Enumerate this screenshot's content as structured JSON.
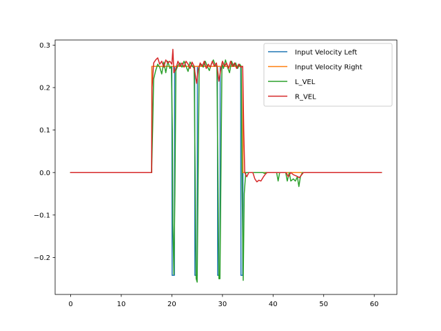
{
  "chart_data": {
    "type": "line",
    "title": "",
    "xlabel": "",
    "ylabel": "",
    "xlim": [
      -3.07,
      64.47
    ],
    "ylim": [
      -0.287,
      0.312
    ],
    "xticks": [
      0,
      10,
      20,
      30,
      40,
      50,
      60
    ],
    "xtick_labels": [
      "0",
      "10",
      "20",
      "30",
      "40",
      "50",
      "60"
    ],
    "yticks": [
      -0.2,
      -0.1,
      0.0,
      0.1,
      0.2,
      0.3
    ],
    "ytick_labels": [
      "−0.2",
      "−0.1",
      "0.0",
      "0.1",
      "0.2",
      "0.3"
    ],
    "grid": false,
    "legend_position": "top-right",
    "series": [
      {
        "name": "Input Velocity Left",
        "color": "#1f77b4",
        "points": [
          [
            0,
            0
          ],
          [
            16.0,
            0
          ],
          [
            16.05,
            0.25
          ],
          [
            20.0,
            0.25
          ],
          [
            20.05,
            -0.242
          ],
          [
            20.5,
            -0.242
          ],
          [
            20.55,
            0.25
          ],
          [
            24.5,
            0.25
          ],
          [
            24.55,
            -0.242
          ],
          [
            25.0,
            -0.242
          ],
          [
            25.05,
            0.25
          ],
          [
            29.0,
            0.25
          ],
          [
            29.05,
            -0.242
          ],
          [
            29.5,
            -0.242
          ],
          [
            29.55,
            0.25
          ],
          [
            33.6,
            0.25
          ],
          [
            33.65,
            -0.242
          ],
          [
            34.0,
            -0.242
          ],
          [
            34.05,
            0
          ],
          [
            61.4,
            0
          ]
        ]
      },
      {
        "name": "Input Velocity Right",
        "color": "#ff7f0e",
        "points": [
          [
            0,
            0
          ],
          [
            16.0,
            0
          ],
          [
            16.05,
            0.25
          ],
          [
            34.0,
            0.25
          ],
          [
            34.05,
            0
          ],
          [
            61.4,
            0
          ]
        ]
      },
      {
        "name": "L_VEL",
        "color": "#2ca02c",
        "points": [
          [
            0,
            0
          ],
          [
            16.0,
            0
          ],
          [
            16.2,
            0.1
          ],
          [
            16.4,
            0.22
          ],
          [
            16.8,
            0.24
          ],
          [
            17.2,
            0.255
          ],
          [
            17.6,
            0.248
          ],
          [
            18.0,
            0.232
          ],
          [
            18.4,
            0.26
          ],
          [
            18.8,
            0.235
          ],
          [
            19.2,
            0.262
          ],
          [
            19.6,
            0.245
          ],
          [
            19.9,
            0.25
          ],
          [
            20.1,
            0.1
          ],
          [
            20.2,
            -0.12
          ],
          [
            20.4,
            -0.24
          ],
          [
            20.6,
            -0.05
          ],
          [
            20.8,
            0.24
          ],
          [
            21.2,
            0.252
          ],
          [
            21.6,
            0.258
          ],
          [
            22.0,
            0.248
          ],
          [
            22.4,
            0.262
          ],
          [
            22.8,
            0.25
          ],
          [
            23.2,
            0.238
          ],
          [
            23.6,
            0.26
          ],
          [
            24.0,
            0.252
          ],
          [
            24.4,
            0.245
          ],
          [
            24.6,
            0.0
          ],
          [
            24.8,
            -0.25
          ],
          [
            25.0,
            -0.258
          ],
          [
            25.2,
            0.0
          ],
          [
            25.4,
            0.25
          ],
          [
            25.8,
            0.255
          ],
          [
            26.2,
            0.248
          ],
          [
            26.6,
            0.262
          ],
          [
            27.0,
            0.25
          ],
          [
            27.4,
            0.24
          ],
          [
            27.8,
            0.255
          ],
          [
            28.2,
            0.265
          ],
          [
            28.6,
            0.252
          ],
          [
            28.9,
            0.25
          ],
          [
            29.1,
            0.0
          ],
          [
            29.3,
            -0.25
          ],
          [
            29.5,
            -0.25
          ],
          [
            29.7,
            0.0
          ],
          [
            29.9,
            0.258
          ],
          [
            30.2,
            0.245
          ],
          [
            30.6,
            0.265
          ],
          [
            31.0,
            0.248
          ],
          [
            31.4,
            0.235
          ],
          [
            31.8,
            0.262
          ],
          [
            32.2,
            0.25
          ],
          [
            32.6,
            0.258
          ],
          [
            33.0,
            0.245
          ],
          [
            33.4,
            0.255
          ],
          [
            33.7,
            0.25
          ],
          [
            33.9,
            -0.05
          ],
          [
            34.1,
            -0.254
          ],
          [
            34.3,
            -0.05
          ],
          [
            34.6,
            0.0
          ],
          [
            38.0,
            0.0
          ],
          [
            38.3,
            -0.002
          ],
          [
            38.6,
            0.0
          ],
          [
            40.7,
            0.0
          ],
          [
            41.0,
            -0.02
          ],
          [
            41.3,
            0.0
          ],
          [
            42.5,
            0.0
          ],
          [
            42.8,
            -0.02
          ],
          [
            43.2,
            0.0
          ],
          [
            43.5,
            -0.02
          ],
          [
            44.0,
            -0.015
          ],
          [
            44.4,
            -0.02
          ],
          [
            44.8,
            -0.01
          ],
          [
            45.1,
            -0.033
          ],
          [
            45.4,
            -0.01
          ],
          [
            45.8,
            0.0
          ],
          [
            61.4,
            0.0
          ]
        ]
      },
      {
        "name": "R_VEL",
        "color": "#d62728",
        "points": [
          [
            0,
            0
          ],
          [
            16.0,
            0
          ],
          [
            16.1,
            0.2
          ],
          [
            16.4,
            0.258
          ],
          [
            16.8,
            0.265
          ],
          [
            17.2,
            0.27
          ],
          [
            17.6,
            0.255
          ],
          [
            18.0,
            0.262
          ],
          [
            18.4,
            0.248
          ],
          [
            18.8,
            0.265
          ],
          [
            19.2,
            0.258
          ],
          [
            19.6,
            0.262
          ],
          [
            20.0,
            0.255
          ],
          [
            20.2,
            0.29
          ],
          [
            20.4,
            0.235
          ],
          [
            20.8,
            0.245
          ],
          [
            21.2,
            0.262
          ],
          [
            21.6,
            0.25
          ],
          [
            22.0,
            0.258
          ],
          [
            22.4,
            0.248
          ],
          [
            22.8,
            0.262
          ],
          [
            23.2,
            0.255
          ],
          [
            23.6,
            0.245
          ],
          [
            24.0,
            0.26
          ],
          [
            24.4,
            0.25
          ],
          [
            24.6,
            0.232
          ],
          [
            24.9,
            0.21
          ],
          [
            25.2,
            0.242
          ],
          [
            25.6,
            0.258
          ],
          [
            26.0,
            0.25
          ],
          [
            26.4,
            0.262
          ],
          [
            26.8,
            0.245
          ],
          [
            27.2,
            0.255
          ],
          [
            27.6,
            0.248
          ],
          [
            28.0,
            0.262
          ],
          [
            28.4,
            0.25
          ],
          [
            28.8,
            0.258
          ],
          [
            29.0,
            0.245
          ],
          [
            29.3,
            0.215
          ],
          [
            29.6,
            0.238
          ],
          [
            30.0,
            0.262
          ],
          [
            30.4,
            0.25
          ],
          [
            30.8,
            0.258
          ],
          [
            31.2,
            0.245
          ],
          [
            31.6,
            0.262
          ],
          [
            32.0,
            0.25
          ],
          [
            32.4,
            0.258
          ],
          [
            32.8,
            0.245
          ],
          [
            33.2,
            0.255
          ],
          [
            33.6,
            0.248
          ],
          [
            34.0,
            0.25
          ],
          [
            34.2,
            0.1
          ],
          [
            34.4,
            0.0
          ],
          [
            34.8,
            -0.01
          ],
          [
            35.2,
            0.0
          ],
          [
            36.0,
            0.0
          ],
          [
            36.4,
            -0.015
          ],
          [
            36.8,
            -0.022
          ],
          [
            37.2,
            -0.018
          ],
          [
            37.6,
            -0.02
          ],
          [
            38.0,
            -0.012
          ],
          [
            38.4,
            -0.005
          ],
          [
            38.8,
            0.0
          ],
          [
            42.6,
            0.0
          ],
          [
            43.0,
            -0.01
          ],
          [
            43.5,
            0.0
          ],
          [
            44.0,
            -0.005
          ],
          [
            44.6,
            -0.008
          ],
          [
            45.2,
            -0.012
          ],
          [
            45.6,
            -0.006
          ],
          [
            46.0,
            0.0
          ],
          [
            61.4,
            0.0
          ]
        ]
      }
    ]
  }
}
